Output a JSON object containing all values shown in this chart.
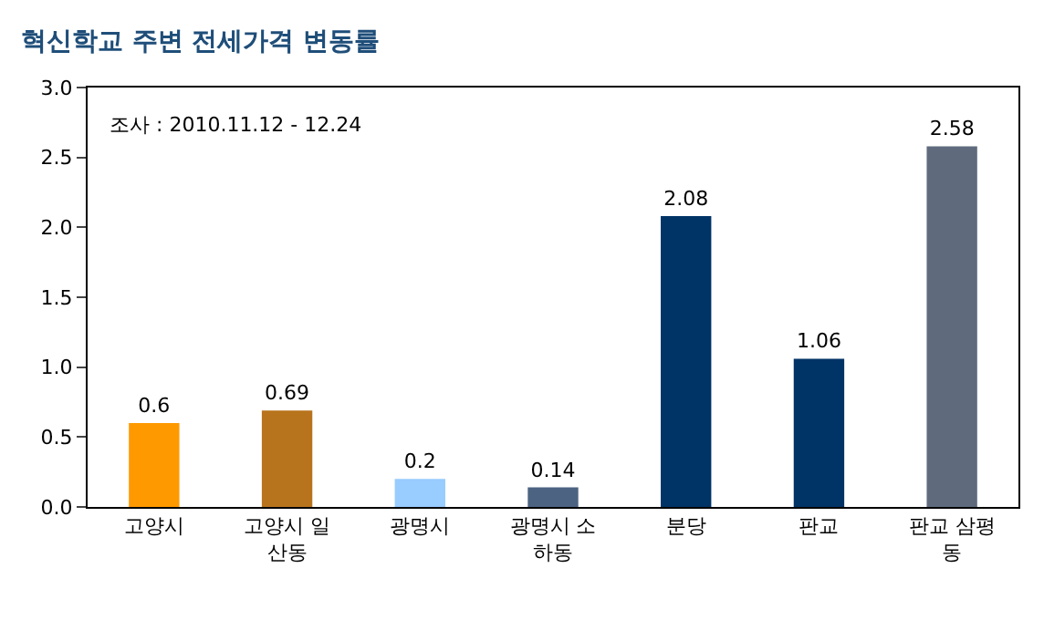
{
  "chart_data": {
    "type": "bar",
    "title": "혁신학교 주변 전세가격 변동률",
    "annotations": [
      "조사 : 2010.11.12 - 12.24"
    ],
    "categories": [
      "고양시",
      "고양시 일산동",
      "광명시",
      "광명시 소하동",
      "분당",
      "판교",
      "판교 삼평동"
    ],
    "values": [
      0.6,
      0.69,
      0.2,
      0.14,
      2.08,
      1.06,
      2.58
    ],
    "colors": [
      "#ff9900",
      "#b8741c",
      "#99ccff",
      "#4d6382",
      "#003366",
      "#003366",
      "#5f6b7d"
    ],
    "ylim": [
      0,
      3
    ],
    "yticks": [
      {
        "value": 0,
        "label": "0.0"
      },
      {
        "value": 0.5,
        "label": "0.5"
      },
      {
        "value": 1,
        "label": "1.0"
      },
      {
        "value": 1.5,
        "label": "1.5"
      },
      {
        "value": 2,
        "label": "2.0"
      },
      {
        "value": 2.5,
        "label": "2.5"
      },
      {
        "value": 3,
        "label": "3.0"
      }
    ],
    "data_labels": true
  }
}
